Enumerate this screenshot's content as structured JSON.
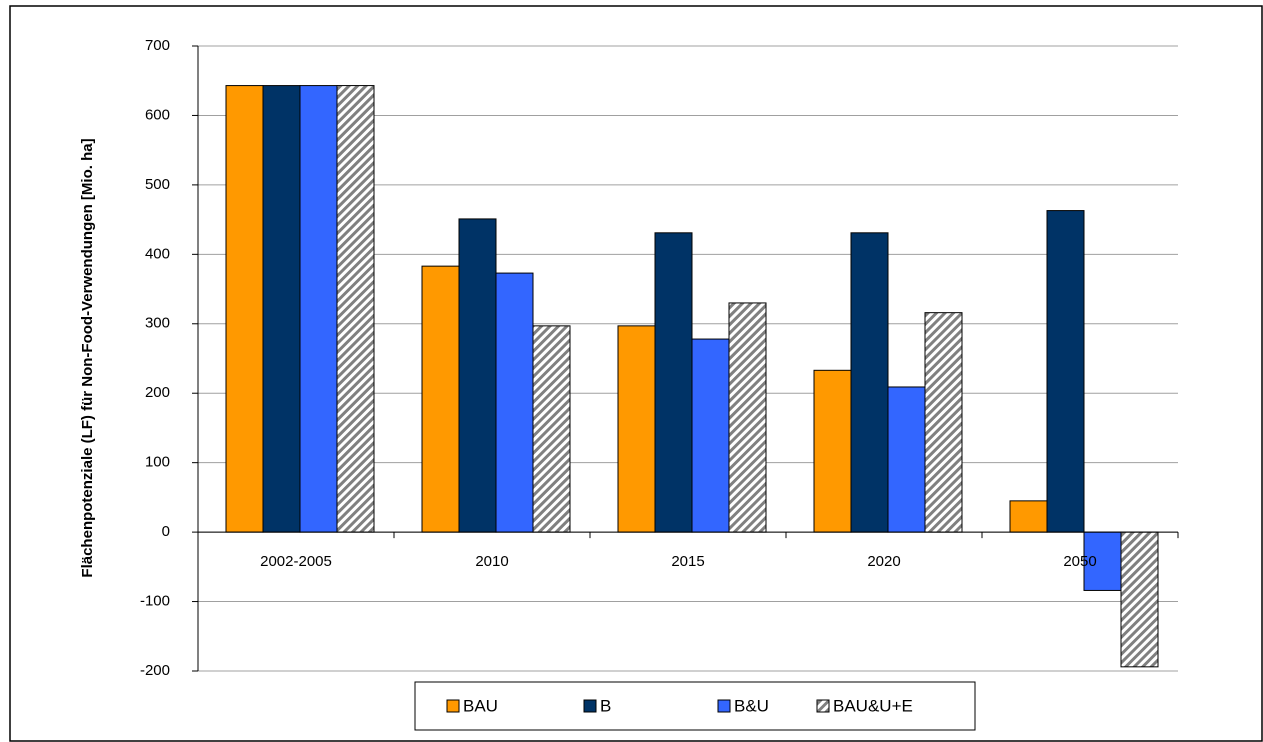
{
  "chart_data": {
    "type": "bar",
    "y_label": "Flächenpotenziale (LF) für Non-Food-Verwendungen [Mio. ha]",
    "categories": [
      "2002-2005",
      "2010",
      "2015",
      "2020",
      "2050"
    ],
    "series": [
      {
        "name": "BAU",
        "color": "#ff9900",
        "values": [
          643,
          383,
          297,
          233,
          45
        ]
      },
      {
        "name": "B",
        "color": "#003366",
        "values": [
          643,
          451,
          431,
          431,
          463
        ]
      },
      {
        "name": "B&U",
        "color": "#3366ff",
        "values": [
          643,
          373,
          278,
          209,
          -84
        ]
      },
      {
        "name": "BAU&U+E",
        "color": "#808080",
        "pattern": "hatch",
        "values": [
          643,
          297,
          330,
          316,
          -194
        ]
      }
    ],
    "ylim": [
      -200,
      700
    ],
    "yticks": [
      -200,
      -100,
      0,
      100,
      200,
      300,
      400,
      500,
      600,
      700
    ],
    "grid": true,
    "legend": "bottom"
  }
}
